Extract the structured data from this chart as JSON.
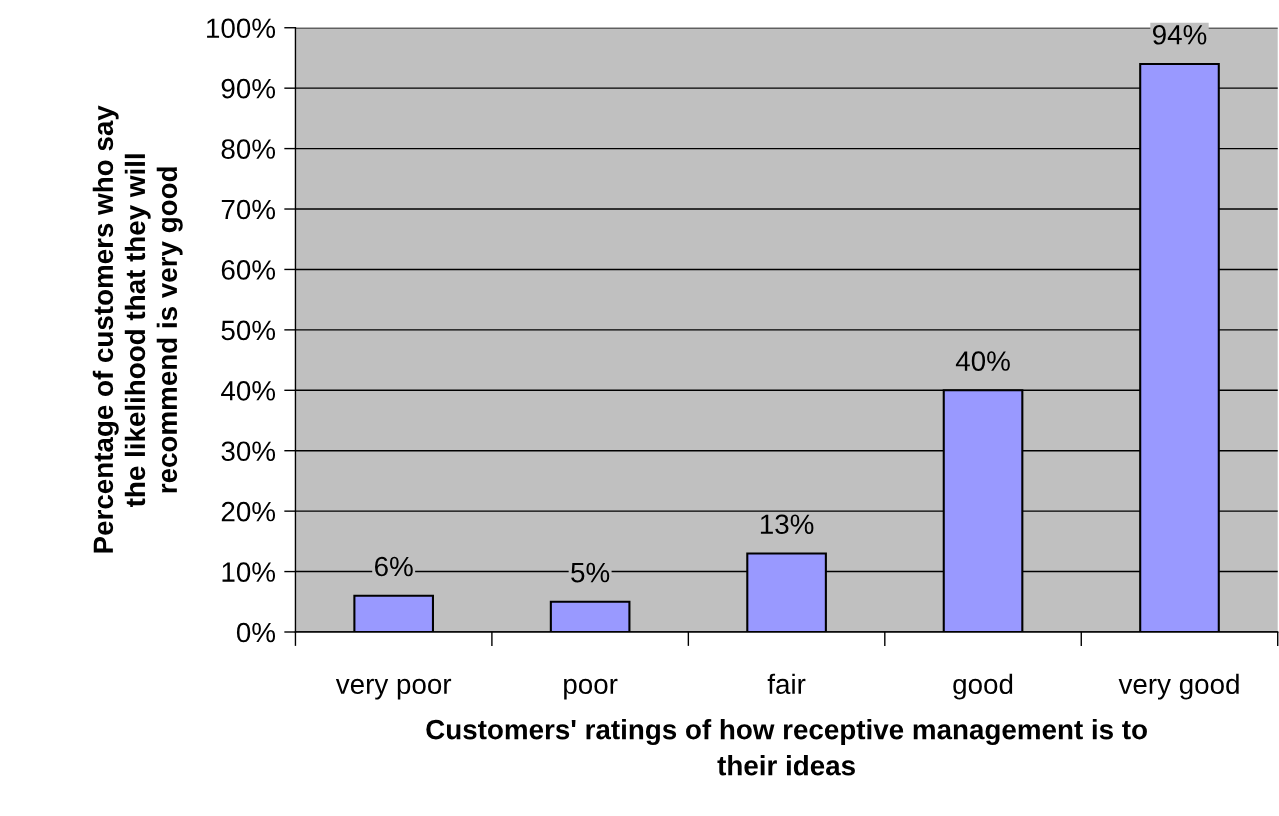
{
  "chart_data": {
    "type": "bar",
    "xlabel": "Customers' ratings of how receptive management is to\ntheir ideas",
    "ylabel": "Percentage of customers who say\nthe likelihood that they will\nrecommend is very good",
    "categories": [
      "very poor",
      "poor",
      "fair",
      "good",
      "very good"
    ],
    "values": [
      6,
      5,
      13,
      40,
      94
    ],
    "value_labels": [
      "6%",
      "5%",
      "13%",
      "40%",
      "94%"
    ],
    "color": "#9999ff",
    "ylim": [
      0,
      100
    ],
    "yticks": [
      {
        "value": 0,
        "label": "0%"
      },
      {
        "value": 10,
        "label": "10%"
      },
      {
        "value": 20,
        "label": "20%"
      },
      {
        "value": 30,
        "label": "30%"
      },
      {
        "value": 40,
        "label": "40%"
      },
      {
        "value": 50,
        "label": "50%"
      },
      {
        "value": 60,
        "label": "60%"
      },
      {
        "value": 70,
        "label": "70%"
      },
      {
        "value": 80,
        "label": "80%"
      },
      {
        "value": 90,
        "label": "90%"
      },
      {
        "value": 100,
        "label": "100%"
      }
    ],
    "grid": "y"
  }
}
